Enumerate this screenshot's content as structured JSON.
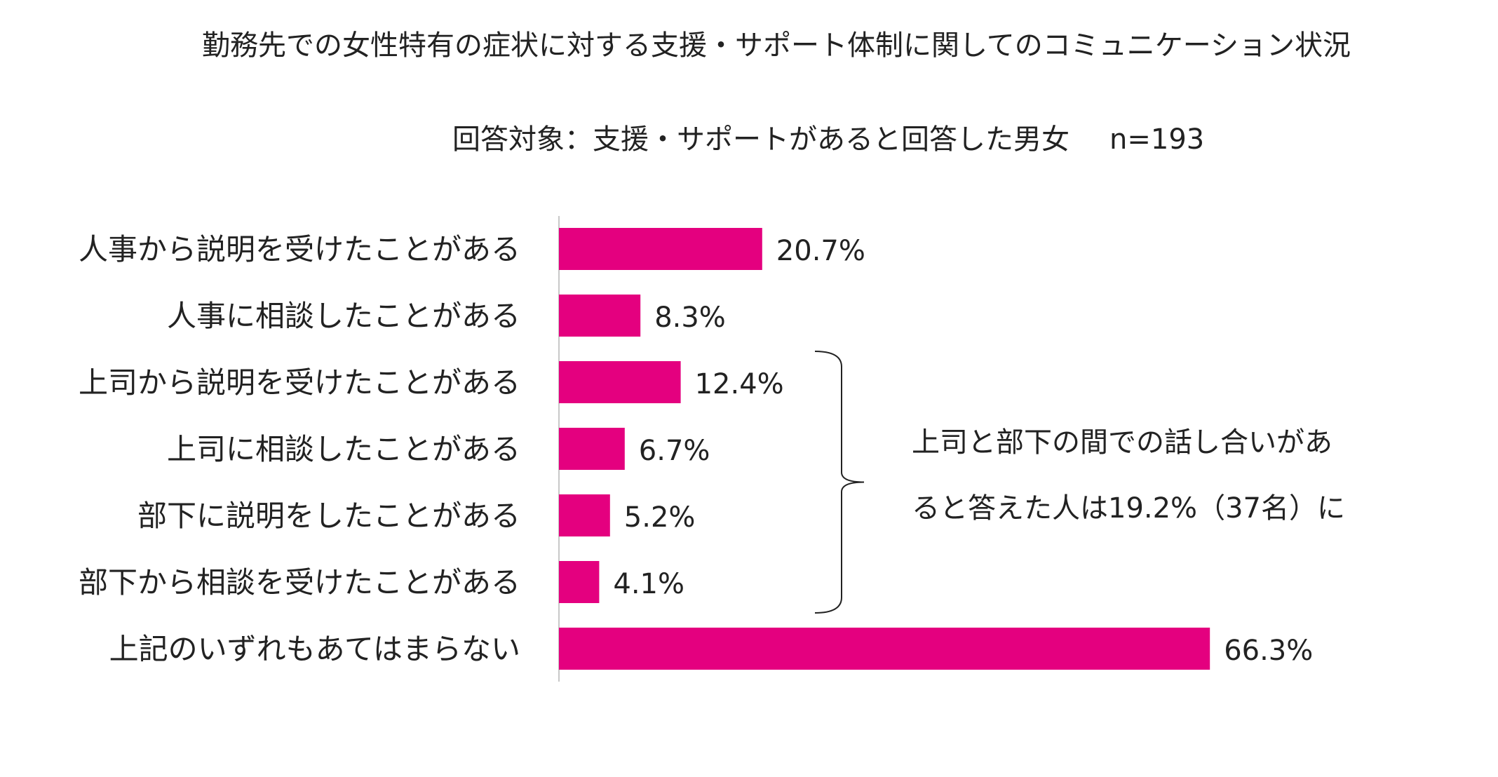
{
  "chart_data": {
    "type": "bar",
    "orientation": "horizontal",
    "title": "勤務先での女性特有の症状に対する支援・サポート体制に関してのコミュニケーション状況",
    "subtitle": "回答対象：支援・サポートがあると回答した男女",
    "sample_size": "n=193",
    "categories": [
      "人事から説明を受けたことがある",
      "人事に相談したことがある",
      "上司から説明を受けたことがある",
      "上司に相談したことがある",
      "部下に説明をしたことがある",
      "部下から相談を受けたことがある",
      "上記のいずれもあてはまらない"
    ],
    "values": [
      20.7,
      8.3,
      12.4,
      6.7,
      5.2,
      4.1,
      66.3
    ],
    "value_labels": [
      "20.7%",
      "8.3%",
      "12.4%",
      "6.7%",
      "5.2%",
      "4.1%",
      "66.3%"
    ],
    "unit": "%",
    "xlim": [
      0,
      100
    ],
    "grid": false,
    "legend": "none",
    "bar_color": "#E4007F",
    "axis_color": "#c8c8c8",
    "annotation": {
      "line1": "上司と部下の間での話し合いがあ",
      "line2": "ると答えた人は19.2%（37名）に",
      "bracket_categories": [
        2,
        5
      ]
    }
  }
}
